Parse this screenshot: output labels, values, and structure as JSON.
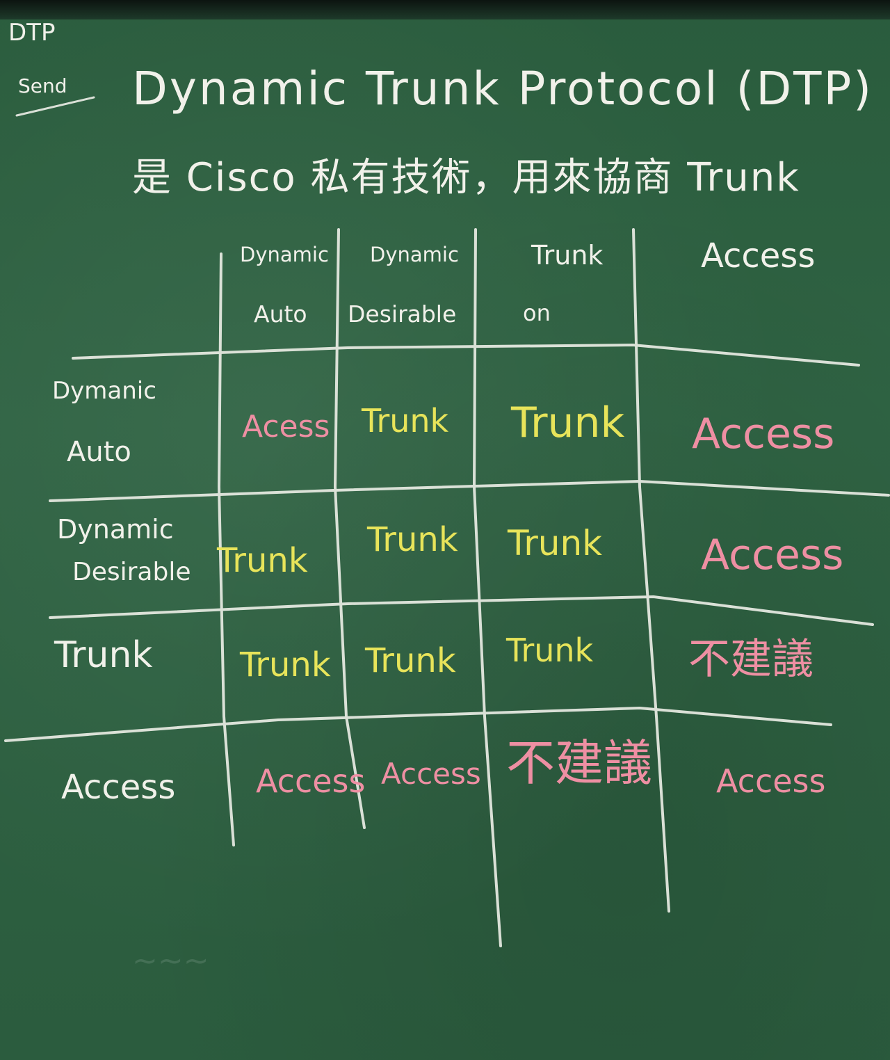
{
  "corner": {
    "line1": "DTP",
    "line2": "Send"
  },
  "title": "Dynamic Trunk Protocol (DTP)",
  "subtitle": "是 Cisco 私有技術，用來協商 Trunk",
  "col_headers": [
    {
      "line1": "Dynamic",
      "line2": "Auto"
    },
    {
      "line1": "Dynamic",
      "line2": "Desirable"
    },
    {
      "line1": "Trunk",
      "line2": "on"
    },
    {
      "line1": "Access",
      "line2": ""
    }
  ],
  "rows": [
    {
      "line1": "Dymanic",
      "line2": "Auto",
      "cells": [
        {
          "text": "Acess",
          "color": "#ee8fa3"
        },
        {
          "text": "Trunk",
          "color": "#e8e45a"
        },
        {
          "text": "Trunk",
          "color": "#e8e45a"
        },
        {
          "text": "Access",
          "color": "#ee8fa3"
        }
      ]
    },
    {
      "line1": "Dynamic",
      "line2": "Desirable",
      "cells": [
        {
          "text": "Trunk",
          "color": "#e8e45a"
        },
        {
          "text": "Trunk",
          "color": "#e8e45a"
        },
        {
          "text": "Trunk",
          "color": "#e8e45a"
        },
        {
          "text": "Access",
          "color": "#ee8fa3"
        }
      ]
    },
    {
      "line1": "Trunk",
      "line2": "",
      "cells": [
        {
          "text": "Trunk",
          "color": "#e8e45a"
        },
        {
          "text": "Trunk",
          "color": "#e8e45a"
        },
        {
          "text": "Trunk",
          "color": "#e8e45a"
        },
        {
          "text": "不建議",
          "color": "#ee8fa3"
        }
      ]
    },
    {
      "line1": "Access",
      "line2": "",
      "cells": [
        {
          "text": "Access",
          "color": "#ee8fa3"
        },
        {
          "text": "Access",
          "color": "#ee8fa3"
        },
        {
          "text": "不建議",
          "color": "#ee8fa3"
        },
        {
          "text": "Access",
          "color": "#ee8fa3"
        }
      ]
    }
  ],
  "colors": {
    "board": "#2f6343",
    "chalk": "#f1f1ea",
    "yellow": "#e8e45a",
    "pink": "#ee8fa3"
  }
}
